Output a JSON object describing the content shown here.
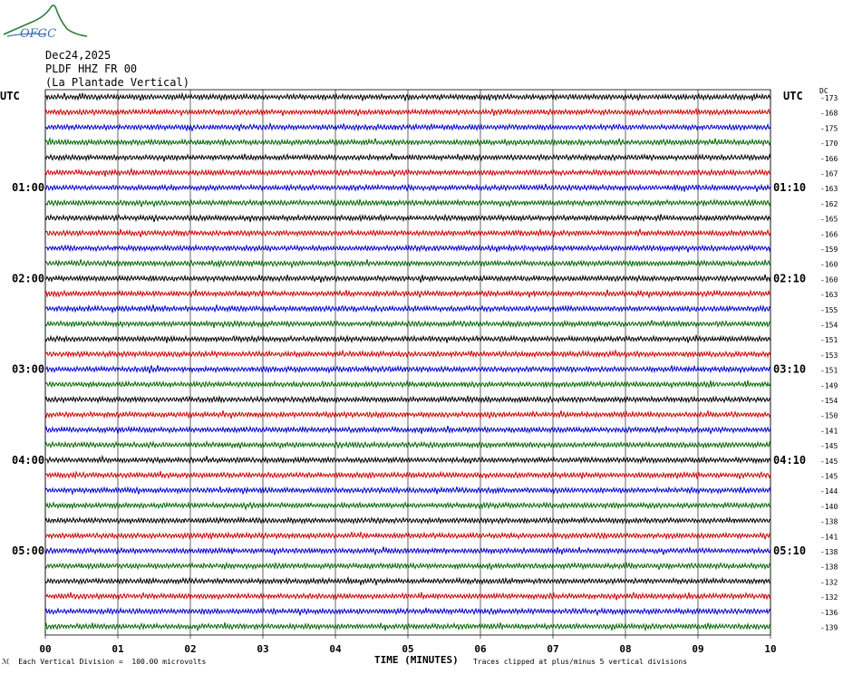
{
  "logo": {
    "text": "OFGC"
  },
  "header": {
    "date": "Dec24,2025",
    "station": "PLDF HHZ FR 00",
    "location": "(La Plantade Vertical)"
  },
  "left_utc_label": "UTC",
  "right_utc_label": "UTC",
  "dc_label": "DC",
  "footer": {
    "scale_note": "Each Vertical Division =  100.00 microvolts",
    "xlabel": "TIME (MINUTES)",
    "clip_note": "Traces clipped at plus/minus 5 vertical divisions"
  },
  "colors": {
    "black": "#000000",
    "red": "#cc0000",
    "blue": "#0000cc",
    "green": "#006600",
    "grid": "#000000"
  },
  "chart_data": {
    "type": "line",
    "title": "PLDF HHZ FR 00",
    "xlabel": "TIME (MINUTES)",
    "ylabel": "UTC",
    "xlim": [
      0,
      10
    ],
    "x_ticks": [
      "00",
      "01",
      "02",
      "03",
      "04",
      "05",
      "06",
      "07",
      "08",
      "09",
      "10"
    ],
    "trace_colors": [
      "black",
      "red",
      "blue",
      "green"
    ],
    "left_hour_labels": [
      {
        "trace": 6,
        "label": "01:00"
      },
      {
        "trace": 12,
        "label": "02:00"
      },
      {
        "trace": 18,
        "label": "03:00"
      },
      {
        "trace": 24,
        "label": "04:00"
      },
      {
        "trace": 30,
        "label": "05:00"
      }
    ],
    "right_hour_labels": [
      {
        "trace": 6,
        "label": "01:10"
      },
      {
        "trace": 12,
        "label": "02:10"
      },
      {
        "trace": 18,
        "label": "03:10"
      },
      {
        "trace": 24,
        "label": "04:10"
      },
      {
        "trace": 30,
        "label": "05:10"
      }
    ],
    "dc_offsets": [
      "-173",
      "-168",
      "-175",
      "-170",
      "-166",
      "-167",
      "-163",
      "-162",
      "-165",
      "-166",
      "-159",
      "-160",
      "-160",
      "-163",
      "-155",
      "-154",
      "-151",
      "-153",
      "-151",
      "-149",
      "-154",
      "-150",
      "-141",
      "-145",
      "-145",
      "-145",
      "-144",
      "-140",
      "-138",
      "-141",
      "-138",
      "-138",
      "-132",
      "-132",
      "-136",
      "-139"
    ],
    "clip_divisions": 5,
    "vertical_division_microvolts": 100.0
  }
}
